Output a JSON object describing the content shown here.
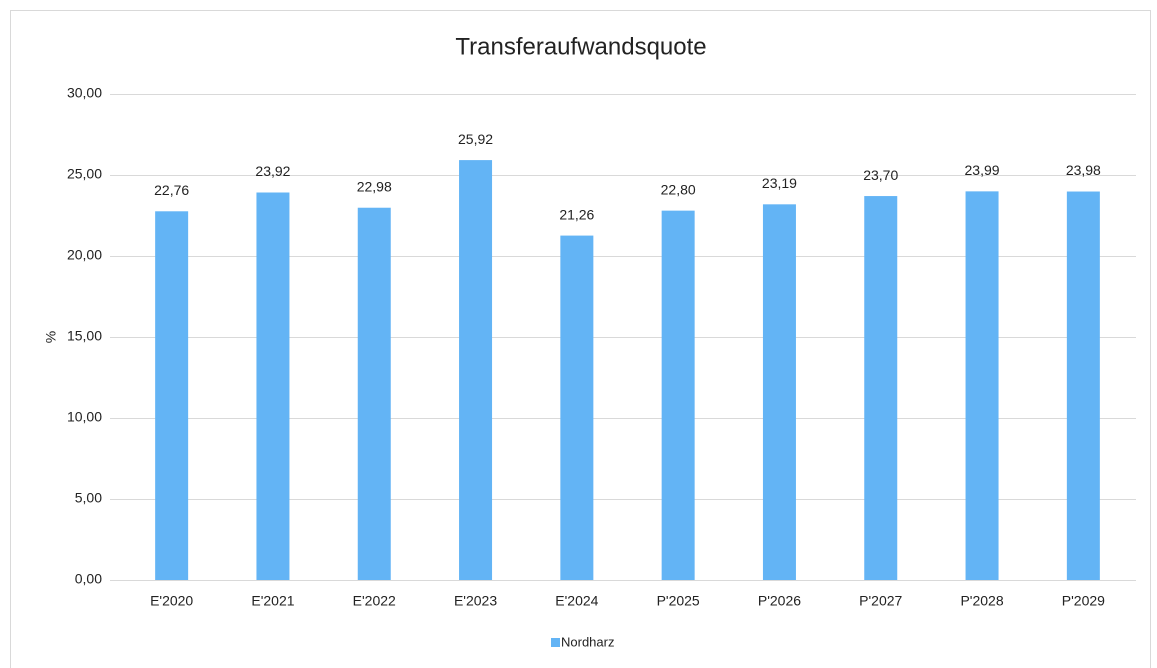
{
  "chart_data": {
    "type": "bar",
    "title": "Transferaufwandsquote",
    "y_label": "%",
    "categories": [
      "E'2020",
      "E'2021",
      "E'2022",
      "E'2023",
      "E'2024",
      "P'2025",
      "P'2026",
      "P'2027",
      "P'2028",
      "P'2029"
    ],
    "series": [
      {
        "name": "Nordharz",
        "color": "#63b4f5",
        "values": [
          22.76,
          23.92,
          22.98,
          25.92,
          21.26,
          22.8,
          23.19,
          23.7,
          23.99,
          23.98
        ],
        "value_labels": [
          "22,76",
          "23,92",
          "22,98",
          "25,92",
          "21,26",
          "22,80",
          "23,19",
          "23,70",
          "23,99",
          "23,98"
        ]
      }
    ],
    "ylim": [
      0,
      30
    ],
    "yticks": [
      {
        "value": 0,
        "label": "0,00"
      },
      {
        "value": 5,
        "label": "5,00"
      },
      {
        "value": 10,
        "label": "10,00"
      },
      {
        "value": 15,
        "label": "15,00"
      },
      {
        "value": 20,
        "label": "20,00"
      },
      {
        "value": 25,
        "label": "25,00"
      },
      {
        "value": 30,
        "label": "30,00"
      }
    ],
    "grid": true,
    "legend": "bottom"
  }
}
